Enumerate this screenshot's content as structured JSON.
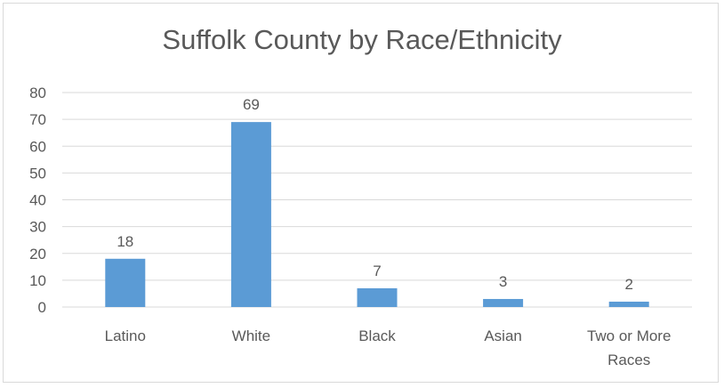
{
  "chart_data": {
    "type": "bar",
    "title": "Suffolk County by Race/Ethnicity",
    "categories": [
      [
        "Latino"
      ],
      [
        "White"
      ],
      [
        "Black"
      ],
      [
        "Asian"
      ],
      [
        "Two or More",
        "Races"
      ]
    ],
    "values": [
      18,
      69,
      7,
      3,
      2
    ],
    "data_labels": [
      "18",
      "69",
      "7",
      "3",
      "2"
    ],
    "ylim": [
      0,
      80
    ],
    "yticks": [
      "0",
      "10",
      "20",
      "30",
      "40",
      "50",
      "60",
      "70",
      "80"
    ],
    "grid": true,
    "legend": "none",
    "colors": {
      "bar": "#5b9bd5",
      "grid": "#d9d9d9",
      "text": "#595959"
    }
  }
}
